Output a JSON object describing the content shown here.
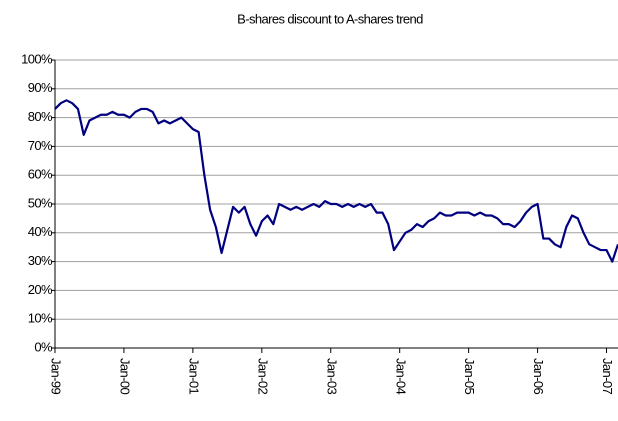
{
  "chart_data": {
    "type": "line",
    "title": "B-shares discount to A-shares trend",
    "x": [
      "1999-01",
      "1999-02",
      "1999-03",
      "1999-04",
      "1999-05",
      "1999-06",
      "1999-07",
      "1999-08",
      "1999-09",
      "1999-10",
      "1999-11",
      "1999-12",
      "2000-01",
      "2000-02",
      "2000-03",
      "2000-04",
      "2000-05",
      "2000-06",
      "2000-07",
      "2000-08",
      "2000-09",
      "2000-10",
      "2000-11",
      "2000-12",
      "2001-01",
      "2001-02",
      "2001-03",
      "2001-04",
      "2001-05",
      "2001-06",
      "2001-07",
      "2001-08",
      "2001-09",
      "2001-10",
      "2001-11",
      "2001-12",
      "2002-01",
      "2002-02",
      "2002-03",
      "2002-04",
      "2002-05",
      "2002-06",
      "2002-07",
      "2002-08",
      "2002-09",
      "2002-10",
      "2002-11",
      "2002-12",
      "2003-01",
      "2003-02",
      "2003-03",
      "2003-04",
      "2003-05",
      "2003-06",
      "2003-07",
      "2003-08",
      "2003-09",
      "2003-10",
      "2003-11",
      "2003-12",
      "2004-01",
      "2004-02",
      "2004-03",
      "2004-04",
      "2004-05",
      "2004-06",
      "2004-07",
      "2004-08",
      "2004-09",
      "2004-10",
      "2004-11",
      "2004-12",
      "2005-01",
      "2005-02",
      "2005-03",
      "2005-04",
      "2005-05",
      "2005-06",
      "2005-07",
      "2005-08",
      "2005-09",
      "2005-10",
      "2005-11",
      "2005-12",
      "2006-01",
      "2006-02",
      "2006-03",
      "2006-04",
      "2006-05",
      "2006-06",
      "2006-07",
      "2006-08",
      "2006-09",
      "2006-10",
      "2006-11",
      "2006-12",
      "2007-01",
      "2007-02",
      "2007-03"
    ],
    "series": [
      {
        "color": "#000080",
        "values": [
          83,
          85,
          86,
          85,
          83,
          74,
          79,
          80,
          81,
          81,
          82,
          81,
          81,
          80,
          82,
          83,
          83,
          82,
          78,
          79,
          78,
          79,
          80,
          78,
          76,
          75,
          60,
          48,
          42,
          33,
          41,
          49,
          47,
          49,
          43,
          39,
          44,
          46,
          43,
          50,
          49,
          48,
          49,
          48,
          49,
          50,
          49,
          51,
          50,
          50,
          49,
          50,
          49,
          50,
          49,
          50,
          47,
          47,
          43,
          34,
          37,
          40,
          41,
          43,
          42,
          44,
          45,
          47,
          46,
          46,
          47,
          47,
          47,
          46,
          47,
          46,
          46,
          45,
          43,
          43,
          42,
          44,
          47,
          49,
          50,
          38,
          38,
          36,
          35,
          42,
          46,
          45,
          40,
          36,
          35,
          34,
          34,
          30,
          36
        ]
      }
    ],
    "xlim": [
      "1999-01",
      "2007-03"
    ],
    "xticks": [
      {
        "value": "1999-01",
        "label": "Jan-99"
      },
      {
        "value": "2000-01",
        "label": "Jan-00"
      },
      {
        "value": "2001-01",
        "label": "Jan-01"
      },
      {
        "value": "2002-01",
        "label": "Jan-02"
      },
      {
        "value": "2003-01",
        "label": "Jan-03"
      },
      {
        "value": "2004-01",
        "label": "Jan-04"
      },
      {
        "value": "2005-01",
        "label": "Jan-05"
      },
      {
        "value": "2006-01",
        "label": "Jan-06"
      },
      {
        "value": "2007-01",
        "label": "Jan-07"
      }
    ],
    "ylim": [
      0,
      100
    ],
    "yticks": [
      {
        "value": 0,
        "label": "0%"
      },
      {
        "value": 10,
        "label": "10%"
      },
      {
        "value": 20,
        "label": "20%"
      },
      {
        "value": 30,
        "label": "30%"
      },
      {
        "value": 40,
        "label": "40%"
      },
      {
        "value": 50,
        "label": "50%"
      },
      {
        "value": 60,
        "label": "60%"
      },
      {
        "value": 70,
        "label": "70%"
      },
      {
        "value": 80,
        "label": "80%"
      },
      {
        "value": 90,
        "label": "90%"
      },
      {
        "value": 100,
        "label": "100%"
      }
    ],
    "grid": true
  }
}
